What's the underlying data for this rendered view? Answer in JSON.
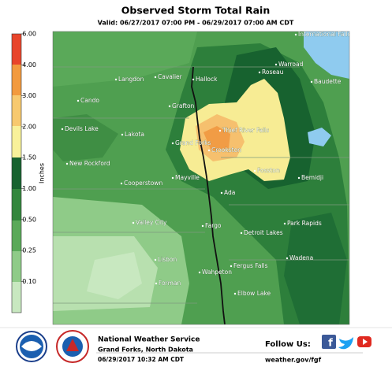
{
  "header": {
    "title": "Observed Storm Total Rain",
    "subtitle": "Valid: 06/27/2017 07:00 PM - 06/29/2017 07:00 AM CDT"
  },
  "legend": {
    "unit": "Inches",
    "labels": [
      "6.00",
      "4.00",
      "3.00",
      "2.00",
      "1.50",
      "1.00",
      "0.50",
      "0.25",
      "0.10"
    ]
  },
  "cities": [
    "International Falls",
    "Warroad",
    "Roseau",
    "Baudette",
    "Langdon",
    "Cavalier",
    "Hallock",
    "Cando",
    "Grafton",
    "Devils Lake",
    "Lakota",
    "Thief River Falls",
    "Grand Forks",
    "Crookston",
    "New Rockford",
    "Fosston",
    "Bemidji",
    "Cooperstown",
    "Mayville",
    "Ada",
    "Valley City",
    "Fargo",
    "Detroit Lakes",
    "Park Rapids",
    "Lisbon",
    "Wadena",
    "Fergus Falls",
    "Wahpeton",
    "Forman",
    "Elbow Lake"
  ],
  "footer": {
    "office": "National Weather Service",
    "location": "Grand Forks, North Dakota",
    "issued": "06/29/2017 10:32 AM CDT",
    "follow": "Follow Us:",
    "website": "weather.gov/fgf"
  }
}
